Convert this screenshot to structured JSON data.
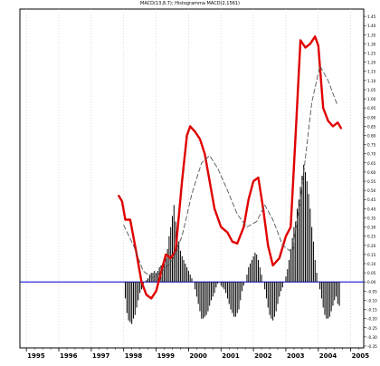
{
  "chart_data": {
    "type": "line",
    "title": "MACD(13,8,7); Histogramma MACD(2,1561)",
    "xlabel": "",
    "ylabel": "",
    "xlim": [
      1994.8,
      2005.4
    ],
    "ylim": [
      -0.36,
      1.49
    ],
    "x_ticks": [
      {
        "x": 1995,
        "label": "1995"
      },
      {
        "x": 1996,
        "label": "1996"
      },
      {
        "x": 1997,
        "label": "1997"
      },
      {
        "x": 1998,
        "label": "1998"
      },
      {
        "x": 1999,
        "label": "1999"
      },
      {
        "x": 2000,
        "label": "2000"
      },
      {
        "x": 2001,
        "label": "2001"
      },
      {
        "x": 2002,
        "label": "2002"
      },
      {
        "x": 2003,
        "label": "2003"
      },
      {
        "x": 2004,
        "label": "2004"
      },
      {
        "x": 2005,
        "label": "2005"
      }
    ],
    "y_ticks": [
      "1.45",
      "1.40",
      "1.35",
      "1.30",
      "1.25",
      "1.20",
      "1.15",
      "1.10",
      "1.05",
      "1.00",
      "0.95",
      "0.90",
      "0.85",
      "0.80",
      "0.75",
      "0.70",
      "0.65",
      "0.60",
      "0.55",
      "0.50",
      "0.45",
      "0.40",
      "0.35",
      "0.30",
      "0.25",
      "0.20",
      "0.15",
      "0.10",
      "0.05",
      "0.00",
      "-0.05",
      "-0.10",
      "-0.15",
      "-0.20",
      "-0.25",
      "-0.30",
      "-0.35"
    ],
    "y_tick_values": [
      1.45,
      1.4,
      1.35,
      1.3,
      1.25,
      1.2,
      1.15,
      1.1,
      1.05,
      1.0,
      0.95,
      0.9,
      0.85,
      0.8,
      0.75,
      0.7,
      0.65,
      0.6,
      0.55,
      0.5,
      0.45,
      0.4,
      0.35,
      0.3,
      0.25,
      0.2,
      0.15,
      0.1,
      0.05,
      0.0,
      -0.05,
      -0.1,
      -0.15,
      -0.2,
      -0.25,
      -0.3,
      -0.35
    ],
    "grid": true,
    "zero_line": 0.0,
    "series": [
      {
        "color": "#e00000",
        "style": "solid",
        "x": [
          1997.85,
          1997.95,
          1998.05,
          1998.2,
          1998.4,
          1998.55,
          1998.7,
          1998.85,
          1999.0,
          1999.15,
          1999.3,
          1999.45,
          1999.6,
          1999.8,
          1999.95,
          2000.05,
          2000.2,
          2000.35,
          2000.5,
          2000.65,
          2000.8,
          2001.0,
          2001.2,
          2001.35,
          2001.5,
          2001.7,
          2001.85,
          2002.0,
          2002.15,
          2002.3,
          2002.45,
          2002.6,
          2002.8,
          2003.0,
          2003.15,
          2003.3,
          2003.45,
          2003.6,
          2003.75,
          2003.9,
          2004.0,
          2004.15,
          2004.3,
          2004.45,
          2004.6,
          2004.7
        ],
        "y": [
          0.47,
          0.44,
          0.34,
          0.34,
          0.15,
          0.0,
          -0.07,
          -0.09,
          -0.05,
          0.05,
          0.15,
          0.13,
          0.17,
          0.55,
          0.8,
          0.85,
          0.82,
          0.78,
          0.7,
          0.55,
          0.4,
          0.3,
          0.27,
          0.22,
          0.21,
          0.3,
          0.45,
          0.55,
          0.57,
          0.4,
          0.2,
          0.09,
          0.13,
          0.25,
          0.3,
          0.8,
          1.32,
          1.28,
          1.3,
          1.34,
          1.29,
          0.95,
          0.88,
          0.85,
          0.87,
          0.84
        ]
      },
      {
        "color": "#555555",
        "style": "dashed",
        "x": [
          1998.0,
          1998.3,
          1998.6,
          1998.9,
          1999.2,
          1999.5,
          1999.8,
          2000.1,
          2000.4,
          2000.65,
          2000.9,
          2001.2,
          2001.5,
          2001.8,
          2002.1,
          2002.35,
          2002.6,
          2002.9,
          2003.2,
          2003.5,
          2003.8,
          2004.05,
          2004.3,
          2004.6
        ],
        "y": [
          0.31,
          0.2,
          0.06,
          0.02,
          0.06,
          0.12,
          0.25,
          0.48,
          0.65,
          0.69,
          0.62,
          0.5,
          0.37,
          0.3,
          0.33,
          0.42,
          0.34,
          0.2,
          0.16,
          0.52,
          0.98,
          1.18,
          1.1,
          0.96
        ]
      }
    ],
    "histogram": {
      "color": "#000000",
      "x": [
        1998.05,
        1998.1,
        1998.15,
        1998.2,
        1998.25,
        1998.3,
        1998.35,
        1998.4,
        1998.45,
        1998.5,
        1998.55,
        1998.6,
        1998.65,
        1998.7,
        1998.75,
        1998.8,
        1998.85,
        1998.9,
        1998.95,
        1999.0,
        1999.05,
        1999.1,
        1999.15,
        1999.2,
        1999.25,
        1999.3,
        1999.35,
        1999.4,
        1999.45,
        1999.5,
        1999.55,
        1999.6,
        1999.65,
        1999.7,
        1999.75,
        1999.8,
        1999.85,
        1999.9,
        1999.95,
        2000.0,
        2000.05,
        2000.1,
        2000.15,
        2000.2,
        2000.25,
        2000.3,
        2000.35,
        2000.4,
        2000.45,
        2000.5,
        2000.55,
        2000.6,
        2000.65,
        2000.7,
        2000.75,
        2000.8,
        2000.85,
        2000.9,
        2000.95,
        2001.0,
        2001.05,
        2001.1,
        2001.15,
        2001.2,
        2001.25,
        2001.3,
        2001.35,
        2001.4,
        2001.45,
        2001.5,
        2001.55,
        2001.6,
        2001.65,
        2001.7,
        2001.75,
        2001.8,
        2001.85,
        2001.9,
        2001.95,
        2002.0,
        2002.05,
        2002.1,
        2002.15,
        2002.2,
        2002.25,
        2002.3,
        2002.35,
        2002.4,
        2002.45,
        2002.5,
        2002.55,
        2002.6,
        2002.65,
        2002.7,
        2002.75,
        2002.8,
        2002.85,
        2002.9,
        2002.95,
        2003.0,
        2003.05,
        2003.1,
        2003.15,
        2003.2,
        2003.25,
        2003.3,
        2003.35,
        2003.4,
        2003.45,
        2003.5,
        2003.55,
        2003.6,
        2003.65,
        2003.7,
        2003.75,
        2003.8,
        2003.85,
        2003.9,
        2003.95,
        2004.0,
        2004.05,
        2004.1,
        2004.15,
        2004.2,
        2004.25,
        2004.3,
        2004.35,
        2004.4,
        2004.45,
        2004.5,
        2004.55,
        2004.6,
        2004.65
      ],
      "values": [
        -0.09,
        -0.17,
        -0.21,
        -0.22,
        -0.23,
        -0.2,
        -0.18,
        -0.14,
        -0.1,
        -0.06,
        -0.04,
        -0.02,
        0.0,
        0.01,
        0.02,
        0.04,
        0.05,
        0.05,
        0.06,
        0.05,
        0.06,
        0.08,
        0.09,
        0.1,
        0.1,
        0.13,
        0.18,
        0.25,
        0.3,
        0.36,
        0.42,
        0.33,
        0.28,
        0.22,
        0.17,
        0.14,
        0.12,
        0.1,
        0.08,
        0.06,
        0.04,
        0.02,
        0.0,
        -0.04,
        -0.08,
        -0.12,
        -0.16,
        -0.2,
        -0.2,
        -0.19,
        -0.18,
        -0.16,
        -0.13,
        -0.1,
        -0.08,
        -0.06,
        -0.03,
        -0.01,
        0.0,
        -0.02,
        -0.03,
        -0.04,
        -0.06,
        -0.09,
        -0.12,
        -0.15,
        -0.17,
        -0.19,
        -0.19,
        -0.17,
        -0.15,
        -0.1,
        -0.05,
        -0.02,
        0.0,
        0.04,
        0.08,
        0.1,
        0.12,
        0.14,
        0.16,
        0.15,
        0.12,
        0.08,
        0.04,
        0.0,
        -0.04,
        -0.09,
        -0.14,
        -0.18,
        -0.2,
        -0.21,
        -0.19,
        -0.16,
        -0.12,
        -0.08,
        -0.05,
        -0.03,
        0.0,
        0.03,
        0.07,
        0.12,
        0.18,
        0.24,
        0.3,
        0.33,
        0.4,
        0.45,
        0.52,
        0.58,
        0.64,
        0.6,
        0.55,
        0.48,
        0.4,
        0.3,
        0.22,
        0.12,
        0.05,
        0.0,
        -0.04,
        -0.09,
        -0.14,
        -0.18,
        -0.2,
        -0.2,
        -0.19,
        -0.16,
        -0.13,
        -0.1,
        -0.08,
        -0.12,
        -0.13
      ]
    }
  }
}
